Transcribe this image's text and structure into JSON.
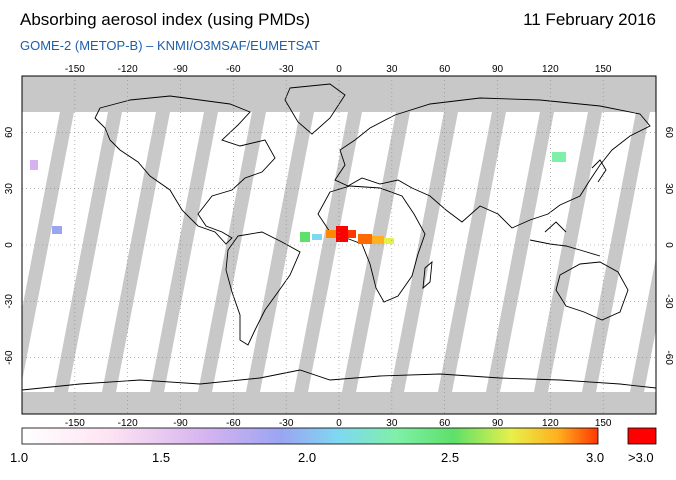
{
  "header": {
    "title": "Absorbing aerosol index (using PMDs)",
    "date": "11 February 2016",
    "subtitle": "GOME-2 (METOP-B)  –  KNMI/O3MSAF/EUMETSAT"
  },
  "map": {
    "lon_ticks": [
      "-150",
      "-120",
      "-90",
      "-60",
      "-30",
      "0",
      "30",
      "60",
      "90",
      "120",
      "150"
    ],
    "lat_ticks": [
      "60",
      "30",
      "0",
      "-30",
      "-60"
    ],
    "lon_values": [
      -150,
      -120,
      -90,
      -60,
      -30,
      0,
      30,
      60,
      90,
      120,
      150
    ],
    "lat_values": [
      60,
      30,
      0,
      -30,
      -60
    ],
    "colors": {
      "no_data": "#c8c8c8",
      "swath_gap": "#b0b0b0",
      "coast": "#000000",
      "grid": "#888888",
      "aerosol_high": "#ff0000",
      "aerosol_mid": "#ff8800"
    }
  },
  "colorbar": {
    "labels": [
      "1.0",
      "1.5",
      "2.0",
      "2.5",
      "3.0"
    ],
    "overflow_label": ">3.0",
    "min": 1.0,
    "max": 3.0,
    "overflow_color": "#ff0000"
  }
}
